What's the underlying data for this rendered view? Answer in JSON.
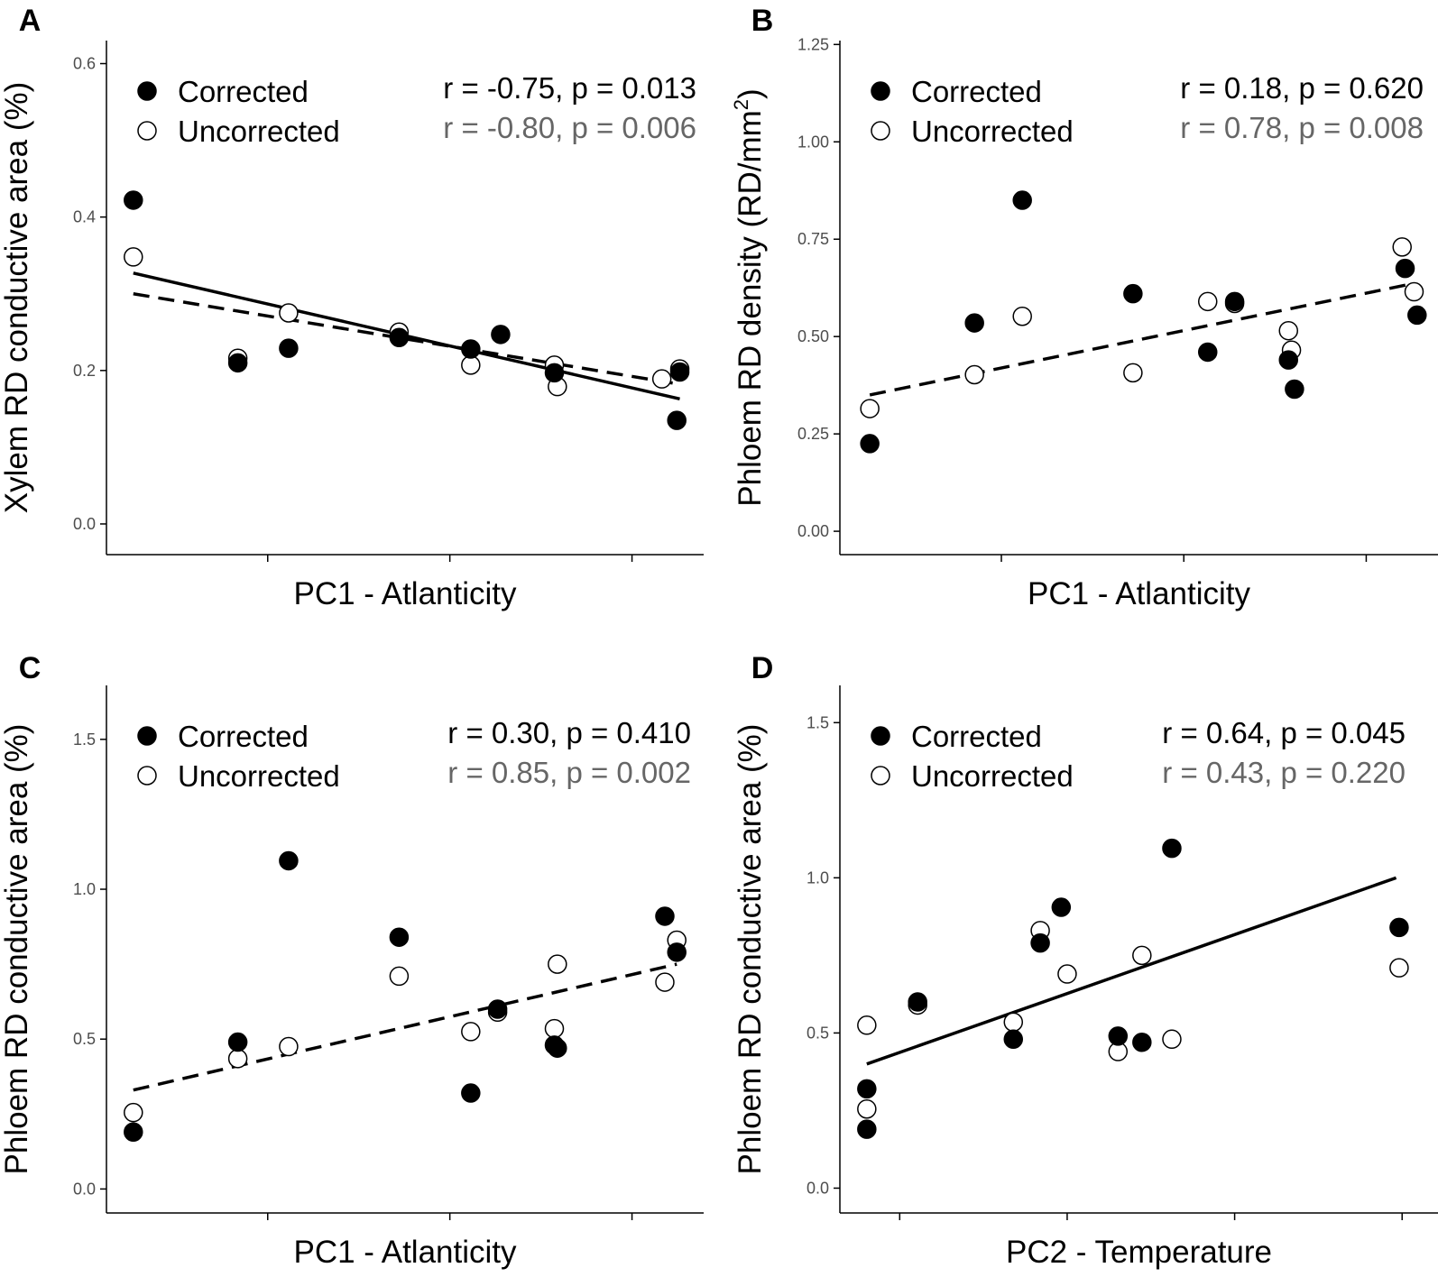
{
  "colors": {
    "ink": "#000000",
    "gray_text": "#666666",
    "tick_text": "#4d4d4d",
    "open_fill": "#ffffff"
  },
  "chart_data": [
    {
      "panel": "A",
      "type": "scatter",
      "xlabel": "PC1 - Atlanticity",
      "ylabel": "Xylem RD conductive area (%)",
      "ylabel_sup": "",
      "ylabel_tail": "",
      "xlim": [
        0,
        100
      ],
      "ylim": [
        -0.04,
        0.63
      ],
      "yticks": [
        0.0,
        0.2,
        0.4,
        0.6
      ],
      "ytick_labels": [
        "0.0",
        "0.2",
        "0.4",
        "0.6"
      ],
      "xticks": [
        27,
        57.5,
        88
      ],
      "legend": {
        "position": "top-left",
        "corrected": "Corrected",
        "uncorrected": "Uncorrected"
      },
      "stats": {
        "corrected": "r = -0.75, p = 0.013",
        "uncorrected": "r = -0.80, p = 0.006"
      },
      "series": [
        {
          "name": "Corrected",
          "x": [
            4.5,
            22,
            30.5,
            49,
            61,
            66,
            75,
            96,
            95.5
          ],
          "y": [
            0.422,
            0.21,
            0.229,
            0.243,
            0.228,
            0.247,
            0.197,
            0.198,
            0.135
          ]
        },
        {
          "name": "Uncorrected",
          "x": [
            4.5,
            22,
            30.5,
            49,
            61,
            75,
            75.5,
            93,
            96
          ],
          "y": [
            0.348,
            0.216,
            0.275,
            0.25,
            0.207,
            0.207,
            0.179,
            0.189,
            0.202
          ]
        }
      ],
      "fits": [
        {
          "series": "Corrected",
          "style": "solid",
          "x": [
            4.5,
            96
          ],
          "y": [
            0.327,
            0.163
          ]
        },
        {
          "series": "Uncorrected",
          "style": "dashed",
          "x": [
            4.5,
            96
          ],
          "y": [
            0.3,
            0.182
          ]
        }
      ]
    },
    {
      "panel": "B",
      "type": "scatter",
      "xlabel": "PC1 - Atlanticity",
      "ylabel": "Phloem RD density (RD/mm",
      "ylabel_sup": "2",
      "ylabel_tail": ")",
      "xlim": [
        0,
        100
      ],
      "ylim": [
        -0.06,
        1.26
      ],
      "yticks": [
        0.0,
        0.25,
        0.5,
        0.75,
        1.0,
        1.25
      ],
      "ytick_labels": [
        "0.00",
        "0.25",
        "0.50",
        "0.75",
        "1.00",
        "1.25"
      ],
      "xticks": [
        27,
        57.5,
        88
      ],
      "legend": {
        "position": "top-left",
        "corrected": "Corrected",
        "uncorrected": "Uncorrected"
      },
      "stats": {
        "corrected": "r = 0.18, p = 0.620",
        "uncorrected": "r = 0.78, p = 0.008"
      },
      "series": [
        {
          "name": "Corrected",
          "x": [
            5,
            22.5,
            30.5,
            49,
            61.5,
            66,
            75,
            76,
            94.5,
            96.5
          ],
          "y": [
            0.225,
            0.535,
            0.85,
            0.61,
            0.46,
            0.59,
            0.44,
            0.365,
            0.675,
            0.555
          ]
        },
        {
          "name": "Uncorrected",
          "x": [
            5,
            22.5,
            30.5,
            49,
            61.5,
            66,
            75,
            75.5,
            94,
            96
          ],
          "y": [
            0.315,
            0.402,
            0.552,
            0.407,
            0.59,
            0.585,
            0.515,
            0.465,
            0.73,
            0.615
          ]
        }
      ],
      "fits": [
        {
          "series": "Uncorrected",
          "style": "dashed",
          "x": [
            5,
            95.5
          ],
          "y": [
            0.35,
            0.635
          ]
        }
      ]
    },
    {
      "panel": "C",
      "type": "scatter",
      "xlabel": "PC1 - Atlanticity",
      "ylabel": "Phloem RD conductive area (%)",
      "ylabel_sup": "",
      "ylabel_tail": "",
      "xlim": [
        0,
        100
      ],
      "ylim": [
        -0.08,
        1.68
      ],
      "yticks": [
        0.0,
        0.5,
        1.0,
        1.5
      ],
      "ytick_labels": [
        "0.0",
        "0.5",
        "1.0",
        "1.5"
      ],
      "xticks": [
        27,
        57.5,
        88
      ],
      "legend": {
        "position": "top-left",
        "corrected": "Corrected",
        "uncorrected": "Uncorrected"
      },
      "stats": {
        "corrected": "r = 0.30, p = 0.410",
        "uncorrected": "r = 0.85, p = 0.002"
      },
      "series": [
        {
          "name": "Corrected",
          "x": [
            4.5,
            22,
            30.5,
            49,
            61,
            65.5,
            75,
            75.5,
            93.5,
            95.5
          ],
          "y": [
            0.19,
            0.49,
            1.095,
            0.84,
            0.32,
            0.6,
            0.48,
            0.47,
            0.91,
            0.79
          ]
        },
        {
          "name": "Uncorrected",
          "x": [
            4.5,
            22,
            30.5,
            49,
            61,
            65.5,
            75,
            75.5,
            93.5,
            95.5
          ],
          "y": [
            0.255,
            0.435,
            0.475,
            0.71,
            0.525,
            0.59,
            0.535,
            0.75,
            0.69,
            0.83
          ]
        }
      ],
      "fits": [
        {
          "series": "Uncorrected",
          "style": "dashed",
          "x": [
            4.5,
            95.5
          ],
          "y": [
            0.33,
            0.75
          ]
        }
      ]
    },
    {
      "panel": "D",
      "type": "scatter",
      "xlabel": "PC2 - Temperature",
      "ylabel": "Phloem RD conductive area (%)",
      "ylabel_sup": "",
      "ylabel_tail": "",
      "xlim": [
        0,
        100
      ],
      "ylim": [
        -0.08,
        1.62
      ],
      "yticks": [
        0.0,
        0.5,
        1.0,
        1.5
      ],
      "ytick_labels": [
        "0.0",
        "0.5",
        "1.0",
        "1.5"
      ],
      "xticks": [
        10,
        38,
        66,
        94
      ],
      "legend": {
        "position": "top-left",
        "corrected": "Corrected",
        "uncorrected": "Uncorrected"
      },
      "stats": {
        "corrected": "r = 0.64, p = 0.045",
        "uncorrected": "r = 0.43, p = 0.220"
      },
      "series": [
        {
          "name": "Corrected",
          "x": [
            4.5,
            4.5,
            13,
            29,
            33.5,
            37,
            46.5,
            50.5,
            55.5,
            93.5
          ],
          "y": [
            0.32,
            0.19,
            0.6,
            0.48,
            0.79,
            0.905,
            0.49,
            0.47,
            1.095,
            0.84
          ]
        },
        {
          "name": "Uncorrected",
          "x": [
            4.5,
            4.5,
            13,
            29,
            33.5,
            38,
            46.5,
            50.5,
            55.5,
            93.5
          ],
          "y": [
            0.525,
            0.255,
            0.59,
            0.535,
            0.83,
            0.69,
            0.44,
            0.75,
            0.48,
            0.71
          ]
        }
      ],
      "fits": [
        {
          "series": "Corrected",
          "style": "solid",
          "x": [
            4.5,
            93
          ],
          "y": [
            0.4,
            1.0
          ]
        }
      ]
    }
  ]
}
